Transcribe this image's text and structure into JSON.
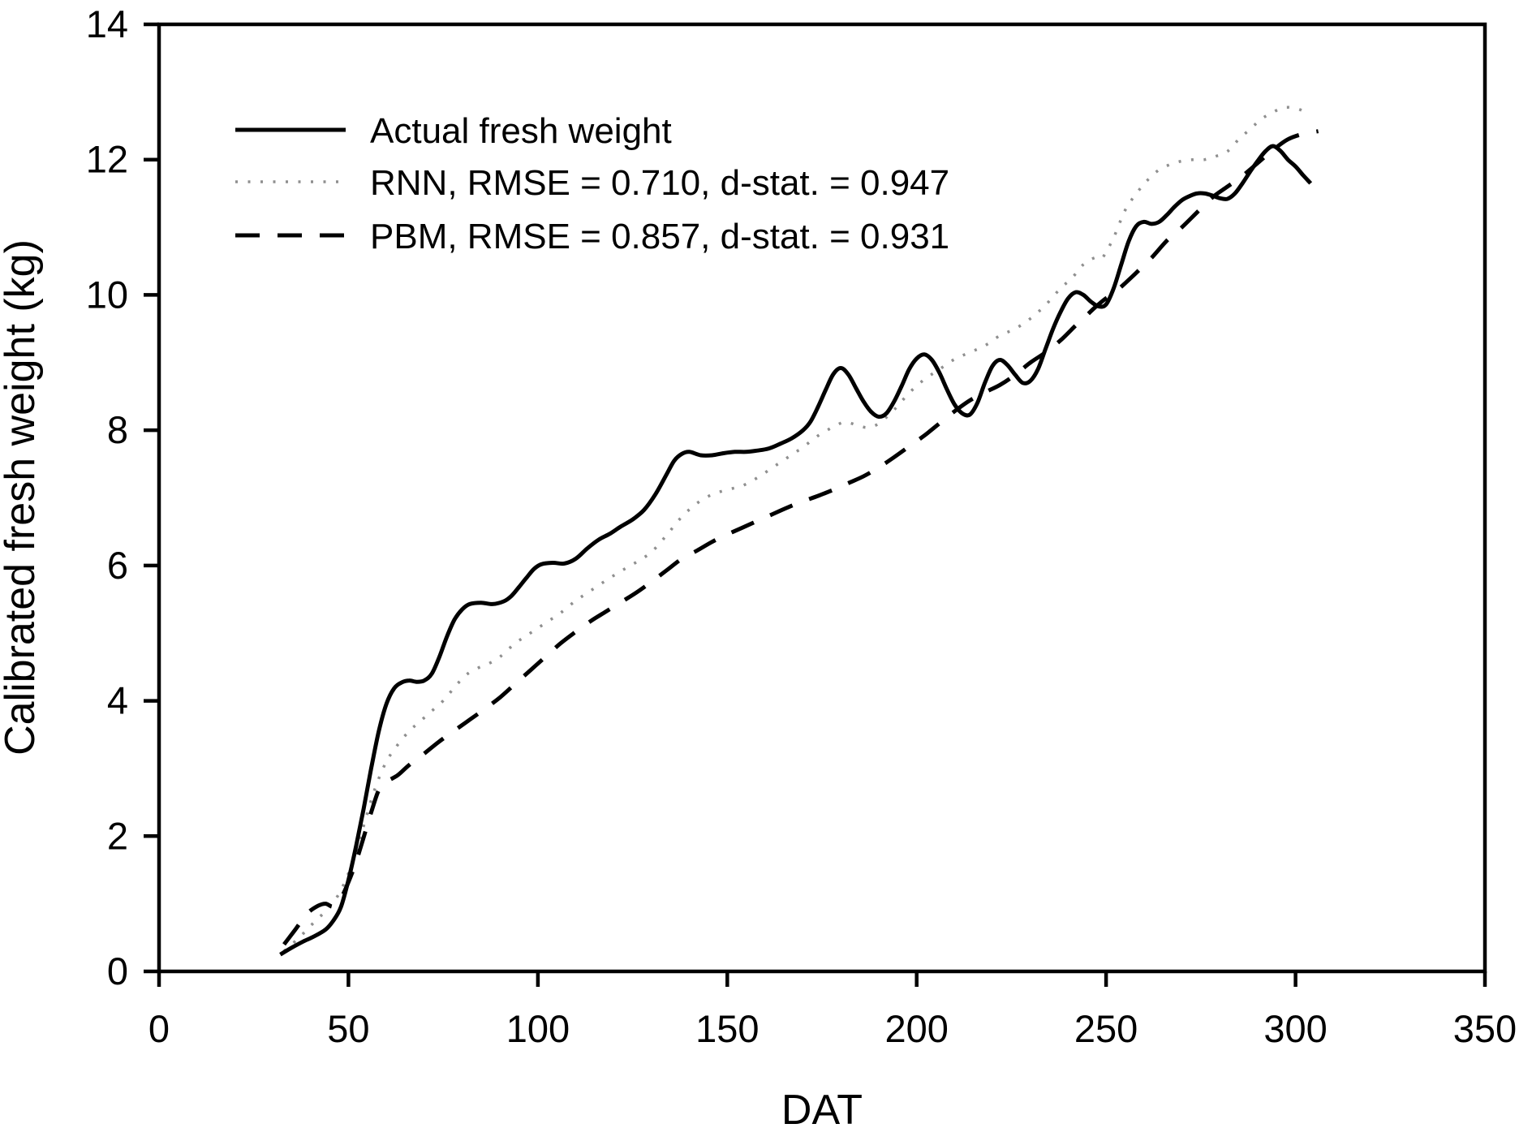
{
  "figure": {
    "background": "#ffffff",
    "frame_color": "#000000"
  },
  "chart_data": {
    "type": "line",
    "title": "",
    "xlabel": "DAT",
    "ylabel": "Calibrated fresh weight (kg)",
    "xlim": [
      0,
      350
    ],
    "ylim": [
      0,
      14
    ],
    "xticks": [
      0,
      50,
      100,
      150,
      200,
      250,
      300,
      350
    ],
    "yticks": [
      0,
      2,
      4,
      6,
      8,
      10,
      12,
      14
    ],
    "grid": false,
    "legend_position": "top-left-inside",
    "series": [
      {
        "name": "Actual fresh weight",
        "line_style": "solid",
        "color": "#000000",
        "points": [
          [
            32,
            0.25
          ],
          [
            35,
            0.35
          ],
          [
            38,
            0.44
          ],
          [
            41,
            0.52
          ],
          [
            44,
            0.62
          ],
          [
            46,
            0.75
          ],
          [
            48,
            0.95
          ],
          [
            50,
            1.35
          ],
          [
            52,
            1.85
          ],
          [
            54,
            2.4
          ],
          [
            56,
            3.0
          ],
          [
            58,
            3.55
          ],
          [
            60,
            3.95
          ],
          [
            62,
            4.18
          ],
          [
            64,
            4.27
          ],
          [
            66,
            4.3
          ],
          [
            68,
            4.28
          ],
          [
            70,
            4.3
          ],
          [
            72,
            4.4
          ],
          [
            74,
            4.65
          ],
          [
            76,
            4.95
          ],
          [
            78,
            5.2
          ],
          [
            80,
            5.35
          ],
          [
            82,
            5.43
          ],
          [
            85,
            5.45
          ],
          [
            88,
            5.43
          ],
          [
            91,
            5.47
          ],
          [
            93,
            5.55
          ],
          [
            95,
            5.68
          ],
          [
            97,
            5.82
          ],
          [
            99,
            5.95
          ],
          [
            101,
            6.02
          ],
          [
            104,
            6.04
          ],
          [
            107,
            6.03
          ],
          [
            110,
            6.1
          ],
          [
            113,
            6.25
          ],
          [
            116,
            6.38
          ],
          [
            119,
            6.47
          ],
          [
            122,
            6.58
          ],
          [
            125,
            6.68
          ],
          [
            128,
            6.82
          ],
          [
            131,
            7.05
          ],
          [
            134,
            7.35
          ],
          [
            136,
            7.55
          ],
          [
            138,
            7.65
          ],
          [
            140,
            7.68
          ],
          [
            143,
            7.63
          ],
          [
            146,
            7.63
          ],
          [
            149,
            7.66
          ],
          [
            152,
            7.68
          ],
          [
            155,
            7.68
          ],
          [
            158,
            7.7
          ],
          [
            161,
            7.73
          ],
          [
            164,
            7.8
          ],
          [
            167,
            7.88
          ],
          [
            170,
            8.0
          ],
          [
            172,
            8.13
          ],
          [
            174,
            8.35
          ],
          [
            176,
            8.6
          ],
          [
            178,
            8.83
          ],
          [
            180,
            8.92
          ],
          [
            182,
            8.82
          ],
          [
            184,
            8.62
          ],
          [
            186,
            8.42
          ],
          [
            188,
            8.27
          ],
          [
            190,
            8.2
          ],
          [
            192,
            8.25
          ],
          [
            194,
            8.42
          ],
          [
            196,
            8.65
          ],
          [
            198,
            8.9
          ],
          [
            200,
            9.06
          ],
          [
            202,
            9.12
          ],
          [
            204,
            9.04
          ],
          [
            206,
            8.85
          ],
          [
            208,
            8.6
          ],
          [
            210,
            8.38
          ],
          [
            212,
            8.25
          ],
          [
            214,
            8.23
          ],
          [
            216,
            8.4
          ],
          [
            218,
            8.7
          ],
          [
            220,
            8.95
          ],
          [
            222,
            9.04
          ],
          [
            224,
            8.96
          ],
          [
            226,
            8.82
          ],
          [
            228,
            8.7
          ],
          [
            230,
            8.73
          ],
          [
            232,
            8.9
          ],
          [
            234,
            9.2
          ],
          [
            236,
            9.5
          ],
          [
            238,
            9.75
          ],
          [
            240,
            9.95
          ],
          [
            242,
            10.04
          ],
          [
            244,
            10.0
          ],
          [
            246,
            9.9
          ],
          [
            248,
            9.83
          ],
          [
            250,
            9.86
          ],
          [
            252,
            10.1
          ],
          [
            254,
            10.45
          ],
          [
            256,
            10.8
          ],
          [
            258,
            11.02
          ],
          [
            260,
            11.08
          ],
          [
            262,
            11.05
          ],
          [
            264,
            11.08
          ],
          [
            266,
            11.18
          ],
          [
            268,
            11.3
          ],
          [
            270,
            11.4
          ],
          [
            272,
            11.46
          ],
          [
            274,
            11.5
          ],
          [
            276,
            11.5
          ],
          [
            278,
            11.47
          ],
          [
            280,
            11.43
          ],
          [
            282,
            11.42
          ],
          [
            284,
            11.5
          ],
          [
            286,
            11.65
          ],
          [
            288,
            11.82
          ],
          [
            290,
            11.98
          ],
          [
            292,
            12.12
          ],
          [
            294,
            12.2
          ],
          [
            296,
            12.13
          ],
          [
            298,
            12.0
          ],
          [
            300,
            11.9
          ],
          [
            302,
            11.77
          ],
          [
            304,
            11.65
          ]
        ]
      },
      {
        "name": "RNN,  RMSE = 0.710,  d-stat.  =  0.947",
        "line_style": "dotted",
        "color": "#8f8f8f",
        "points": [
          [
            33,
            0.3
          ],
          [
            37,
            0.5
          ],
          [
            41,
            0.73
          ],
          [
            45,
            0.95
          ],
          [
            48,
            1.2
          ],
          [
            51,
            1.6
          ],
          [
            54,
            2.15
          ],
          [
            57,
            2.7
          ],
          [
            60,
            3.1
          ],
          [
            63,
            3.35
          ],
          [
            66,
            3.55
          ],
          [
            69,
            3.7
          ],
          [
            72,
            3.85
          ],
          [
            75,
            4.0
          ],
          [
            78,
            4.2
          ],
          [
            81,
            4.38
          ],
          [
            84,
            4.48
          ],
          [
            87,
            4.55
          ],
          [
            90,
            4.65
          ],
          [
            94,
            4.85
          ],
          [
            98,
            5.0
          ],
          [
            102,
            5.15
          ],
          [
            106,
            5.3
          ],
          [
            110,
            5.48
          ],
          [
            114,
            5.63
          ],
          [
            118,
            5.78
          ],
          [
            122,
            5.92
          ],
          [
            126,
            6.05
          ],
          [
            130,
            6.2
          ],
          [
            134,
            6.45
          ],
          [
            138,
            6.72
          ],
          [
            142,
            6.92
          ],
          [
            146,
            7.05
          ],
          [
            150,
            7.12
          ],
          [
            154,
            7.18
          ],
          [
            158,
            7.3
          ],
          [
            162,
            7.45
          ],
          [
            166,
            7.6
          ],
          [
            170,
            7.75
          ],
          [
            174,
            7.92
          ],
          [
            178,
            8.05
          ],
          [
            181,
            8.12
          ],
          [
            184,
            8.08
          ],
          [
            187,
            8.04
          ],
          [
            190,
            8.1
          ],
          [
            194,
            8.3
          ],
          [
            198,
            8.55
          ],
          [
            202,
            8.75
          ],
          [
            206,
            8.9
          ],
          [
            210,
            9.05
          ],
          [
            214,
            9.15
          ],
          [
            218,
            9.25
          ],
          [
            222,
            9.4
          ],
          [
            226,
            9.5
          ],
          [
            230,
            9.65
          ],
          [
            234,
            9.85
          ],
          [
            238,
            10.1
          ],
          [
            241,
            10.25
          ],
          [
            244,
            10.45
          ],
          [
            247,
            10.55
          ],
          [
            249,
            10.55
          ],
          [
            252,
            10.85
          ],
          [
            255,
            11.25
          ],
          [
            258,
            11.5
          ],
          [
            261,
            11.7
          ],
          [
            264,
            11.85
          ],
          [
            267,
            11.93
          ],
          [
            270,
            11.98
          ],
          [
            273,
            12.0
          ],
          [
            276,
            12.0
          ],
          [
            279,
            12.05
          ],
          [
            282,
            12.12
          ],
          [
            285,
            12.3
          ],
          [
            288,
            12.45
          ],
          [
            291,
            12.6
          ],
          [
            294,
            12.7
          ],
          [
            297,
            12.77
          ],
          [
            300,
            12.76
          ],
          [
            302,
            12.72
          ]
        ]
      },
      {
        "name": "PBM,  RMSE = 0.857,  d-stat.  =  0.931",
        "line_style": "dashed",
        "color": "#000000",
        "points": [
          [
            33,
            0.4
          ],
          [
            36,
            0.62
          ],
          [
            39,
            0.85
          ],
          [
            42,
            0.97
          ],
          [
            44,
            1.0
          ],
          [
            46,
            0.96
          ],
          [
            48,
            1.08
          ],
          [
            50,
            1.32
          ],
          [
            52,
            1.62
          ],
          [
            54,
            1.98
          ],
          [
            56,
            2.35
          ],
          [
            58,
            2.68
          ],
          [
            60,
            2.8
          ],
          [
            63,
            2.9
          ],
          [
            66,
            3.05
          ],
          [
            70,
            3.22
          ],
          [
            74,
            3.4
          ],
          [
            78,
            3.56
          ],
          [
            82,
            3.72
          ],
          [
            86,
            3.88
          ],
          [
            90,
            4.05
          ],
          [
            94,
            4.25
          ],
          [
            98,
            4.45
          ],
          [
            102,
            4.65
          ],
          [
            106,
            4.85
          ],
          [
            110,
            5.02
          ],
          [
            114,
            5.18
          ],
          [
            118,
            5.32
          ],
          [
            122,
            5.46
          ],
          [
            126,
            5.6
          ],
          [
            130,
            5.76
          ],
          [
            134,
            5.93
          ],
          [
            138,
            6.1
          ],
          [
            142,
            6.22
          ],
          [
            146,
            6.35
          ],
          [
            150,
            6.46
          ],
          [
            154,
            6.56
          ],
          [
            158,
            6.66
          ],
          [
            162,
            6.76
          ],
          [
            166,
            6.86
          ],
          [
            170,
            6.95
          ],
          [
            174,
            7.03
          ],
          [
            178,
            7.12
          ],
          [
            182,
            7.22
          ],
          [
            186,
            7.32
          ],
          [
            190,
            7.45
          ],
          [
            194,
            7.6
          ],
          [
            198,
            7.76
          ],
          [
            202,
            7.92
          ],
          [
            206,
            8.1
          ],
          [
            210,
            8.28
          ],
          [
            214,
            8.44
          ],
          [
            218,
            8.56
          ],
          [
            222,
            8.67
          ],
          [
            226,
            8.82
          ],
          [
            230,
            9.0
          ],
          [
            234,
            9.15
          ],
          [
            238,
            9.33
          ],
          [
            242,
            9.55
          ],
          [
            244,
            9.65
          ],
          [
            246,
            9.76
          ],
          [
            248,
            9.86
          ],
          [
            250,
            9.95
          ],
          [
            252,
            10.02
          ],
          [
            254,
            10.12
          ],
          [
            258,
            10.33
          ],
          [
            262,
            10.55
          ],
          [
            266,
            10.8
          ],
          [
            270,
            11.0
          ],
          [
            274,
            11.22
          ],
          [
            278,
            11.44
          ],
          [
            282,
            11.6
          ],
          [
            286,
            11.76
          ],
          [
            290,
            11.95
          ],
          [
            294,
            12.14
          ],
          [
            298,
            12.3
          ],
          [
            302,
            12.38
          ],
          [
            306,
            12.42
          ]
        ]
      }
    ]
  }
}
